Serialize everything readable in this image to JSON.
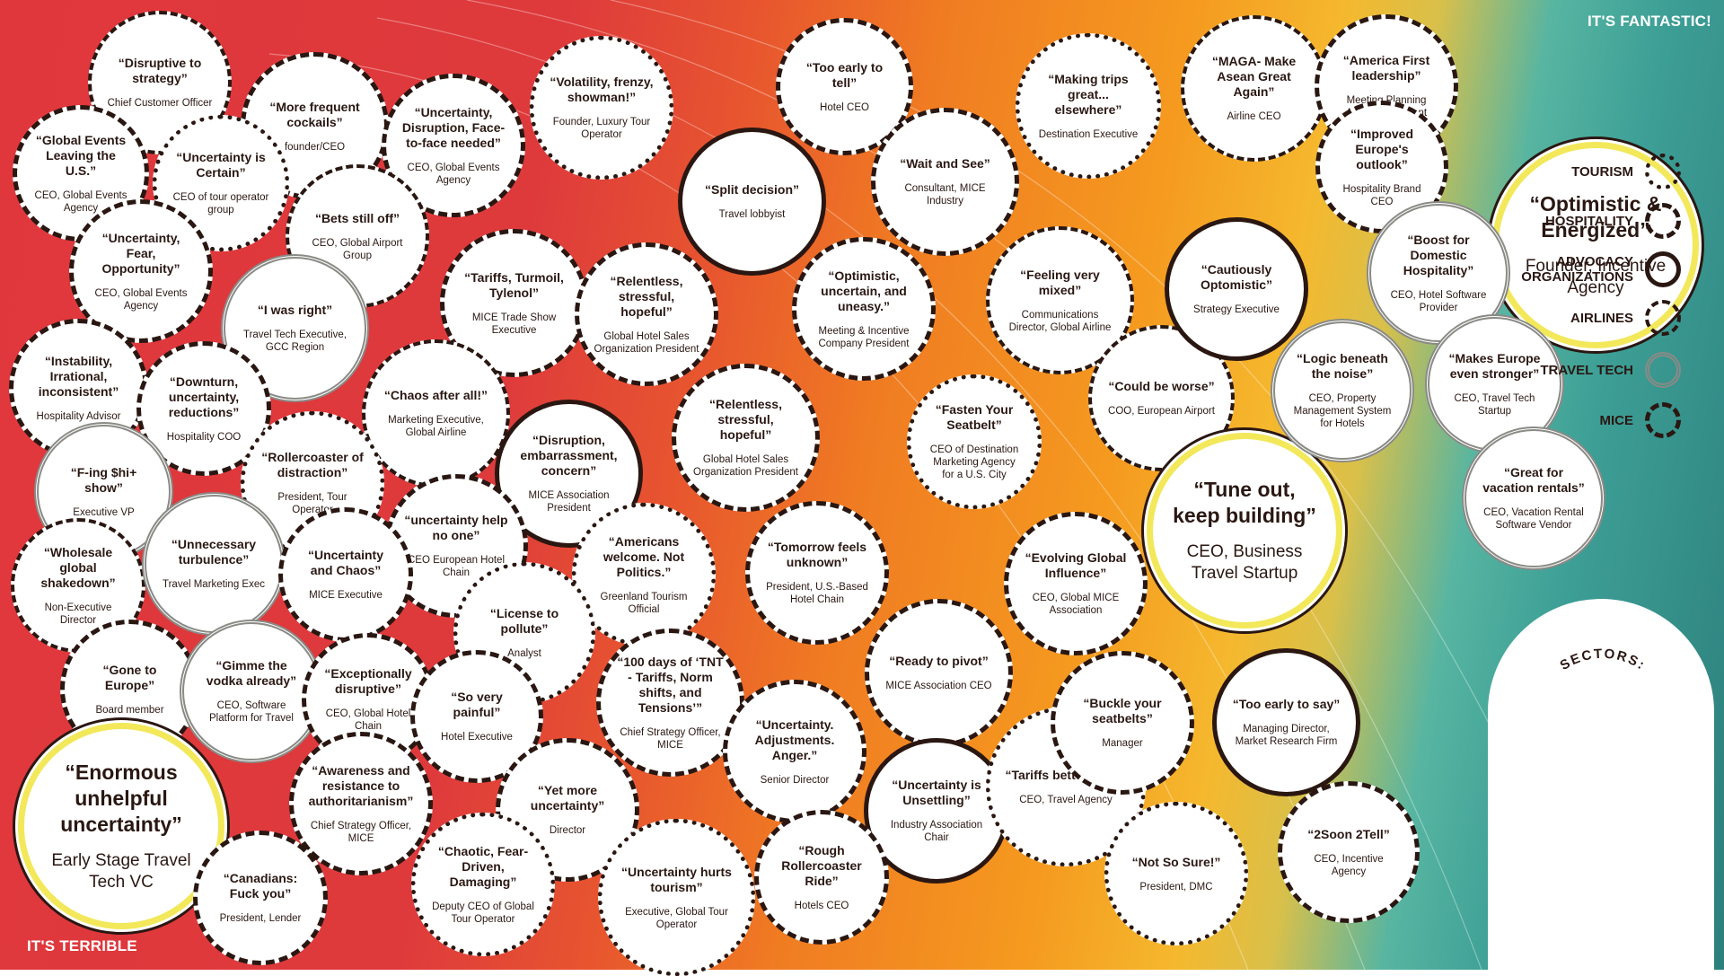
{
  "header": {
    "top_right": "IT'S FANTASTIC!",
    "bottom_left": "IT'S TERRIBLE"
  },
  "legend": {
    "title": "SECTORS:",
    "items": [
      {
        "label": "TOURISM",
        "sector": "tourism"
      },
      {
        "label": "HOSPITALITY",
        "sector": "hospitality"
      },
      {
        "label": "ADVOCACY ORGANIZATIONS",
        "sector": "advocacy"
      },
      {
        "label": "AIRLINES",
        "sector": "airlines"
      },
      {
        "label": "TRAVEL TECH",
        "sector": "traveltech"
      },
      {
        "label": "MICE",
        "sector": "mice"
      }
    ]
  },
  "colors": {
    "red": "#e0373d",
    "orange": "#f07c22",
    "yellow": "#f5b82e",
    "teal": "#3d9f96",
    "highlight_ring": "#f2e85a",
    "ink": "#2a1712"
  },
  "bubbles": [
    {
      "quote": "“Disruptive to strategy”",
      "role": "Chief Customer Officer",
      "sector": "airlines"
    },
    {
      "quote": "“More frequent cockails”",
      "role": "founder/CEO",
      "sector": "hospitality"
    },
    {
      "quote": "“Global Events Leaving the U.S.”",
      "role": "CEO, Global Events Agency",
      "sector": "mice"
    },
    {
      "quote": "“Uncertainty is Certain”",
      "role": "CEO of tour operator group",
      "sector": "tourism"
    },
    {
      "quote": "“Uncertainty, Disruption, Face-to-face needed”",
      "role": "CEO, Global Events Agency",
      "sector": "mice"
    },
    {
      "quote": "“Volatility, frenzy, showman!”",
      "role": "Founder, Luxury Tour Operator",
      "sector": "tourism"
    },
    {
      "quote": "“Bets still off”",
      "role": "CEO, Global Airport Group",
      "sector": "airlines"
    },
    {
      "quote": "“Uncertainty, Fear, Opportunity”",
      "role": "CEO, Global Events Agency",
      "sector": "mice"
    },
    {
      "quote": "“I was right”",
      "role": "Travel Tech Executive, GCC Region",
      "sector": "traveltech"
    },
    {
      "quote": "“Tariffs, Turmoil, Tylenol”",
      "role": "MICE Trade Show Executive",
      "sector": "mice"
    },
    {
      "quote": "“Relentless, stressful, hopeful”",
      "role": "Global Hotel Sales Organization President",
      "sector": "hospitality"
    },
    {
      "quote": "“Instability, Irrational, inconsistent”",
      "role": "Hospitality Advisor",
      "sector": "hospitality"
    },
    {
      "quote": "“Downturn, uncertainty, reductions”",
      "role": "Hospitality COO",
      "sector": "hospitality"
    },
    {
      "quote": "“Chaos after all!”",
      "role": "Marketing Executive, Global Airline",
      "sector": "airlines"
    },
    {
      "quote": "“F-ing $hi+ show”",
      "role": "Executive VP",
      "sector": "traveltech"
    },
    {
      "quote": "“Rollercoaster of distraction”",
      "role": "President, Tour Operator",
      "sector": "tourism"
    },
    {
      "quote": "“Disruption, embarrassment, concern”",
      "role": "MICE Association President",
      "sector": "advocacy"
    },
    {
      "quote": "“Relentless, stressful, hopeful”",
      "role": "Global Hotel Sales Organization President",
      "sector": "hospitality"
    },
    {
      "quote": "“uncertainty help no one”",
      "role": "CEO European Hotel Chain",
      "sector": "hospitality"
    },
    {
      "quote": "“Wholesale global shakedown”",
      "role": "Non-Executive Director",
      "sector": "airlines"
    },
    {
      "quote": "“Unnecessary turbulence”",
      "role": "Travel Marketing Exec",
      "sector": "traveltech"
    },
    {
      "quote": "“Uncertainty and Chaos”",
      "role": "MICE Executive",
      "sector": "mice"
    },
    {
      "quote": "“Americans welcome. Not Politics.”",
      "role": "Greenland Tourism Official",
      "sector": "tourism"
    },
    {
      "quote": "“License to pollute”",
      "role": "Analyst",
      "sector": "tourism"
    },
    {
      "quote": "“Gone to Europe”",
      "role": "Board member",
      "sector": "hospitality"
    },
    {
      "quote": "“Gimme the vodka already”",
      "role": "CEO, Software Platform for Travel",
      "sector": "traveltech"
    },
    {
      "quote": "“Exceptionally disruptive”",
      "role": "CEO, Global Hotel Chain",
      "sector": "hospitality"
    },
    {
      "quote": "“So very painful”",
      "role": "Hotel Executive",
      "sector": "hospitality"
    },
    {
      "quote": "“100 days of ‘TNT - Tariffs, Norm shifts, and Tensions’”",
      "role": "Chief Strategy Officer, MICE",
      "sector": "mice"
    },
    {
      "quote": "“Enormous unhelpful uncertainty”",
      "role": "Early Stage Travel Tech VC",
      "sector": "featured"
    },
    {
      "quote": "“Awareness and resistance to authoritarianism”",
      "role": "Chief Strategy Officer, MICE",
      "sector": "mice"
    },
    {
      "quote": "“Yet more uncertainty”",
      "role": "Director",
      "sector": "hospitality"
    },
    {
      "quote": "“Canadians: Fuck you”",
      "role": "President, Lender",
      "sector": "hospitality"
    },
    {
      "quote": "“Chaotic, Fear-Driven, Damaging”",
      "role": "Deputy CEO of Global Tour Operator",
      "sector": "tourism"
    },
    {
      "quote": "“Uncertainty hurts tourism”",
      "role": "Executive, Global Tour Operator",
      "sector": "tourism"
    },
    {
      "quote": "“Too early to tell”",
      "role": "Hotel CEO",
      "sector": "hospitality"
    },
    {
      "quote": "“Split decision”",
      "role": "Travel lobbyist",
      "sector": "advocacy"
    },
    {
      "quote": "“Wait and See”",
      "role": "Consultant, MICE Industry",
      "sector": "mice"
    },
    {
      "quote": "“Optimistic, uncertain, and uneasy.”",
      "role": "Meeting & Incentive Company President",
      "sector": "mice"
    },
    {
      "quote": "“Fasten Your Seatbelt”",
      "role": "CEO of Destination Marketing Agency for a U.S. City",
      "sector": "tourism"
    },
    {
      "quote": "“Tomorrow feels unknown”",
      "role": "President, U.S.-Based Hotel Chain",
      "sector": "hospitality"
    },
    {
      "quote": "“Ready to pivot”",
      "role": "MICE Association CEO",
      "sector": "mice"
    },
    {
      "quote": "“Uncertainty. Adjustments. Anger.”",
      "role": "Senior Director",
      "sector": "hospitality"
    },
    {
      "quote": "“Uncertainty is Unsettling”",
      "role": "Industry Association Chair",
      "sector": "advocacy"
    },
    {
      "quote": "“Rough Rollercoaster Ride”",
      "role": "Hotels CEO",
      "sector": "hospitality"
    },
    {
      "quote": "“Tariffs better work”",
      "role": "CEO, Travel Agency",
      "sector": "tourism"
    },
    {
      "quote": "“Making trips great... elsewhere”",
      "role": "Destination Executive",
      "sector": "tourism"
    },
    {
      "quote": "“Feeling very mixed”",
      "role": "Communications Director, Global Airline",
      "sector": "airlines"
    },
    {
      "quote": "“Could be worse”",
      "role": "COO, European Airport",
      "sector": "airlines"
    },
    {
      "quote": "“Cautiously Optomistic”",
      "role": "Strategy Executive",
      "sector": "advocacy"
    },
    {
      "quote": "“Evolving Global Influence”",
      "role": "CEO, Global MICE Association",
      "sector": "mice"
    },
    {
      "quote": "“Tune out, keep building”",
      "role": "CEO, Business Travel Startup",
      "sector": "featured"
    },
    {
      "quote": "“Buckle your seatbelts”",
      "role": "Manager",
      "sector": "hospitality"
    },
    {
      "quote": "“Too early to say”",
      "role": "Managing Director, Market Research Firm",
      "sector": "advocacy"
    },
    {
      "quote": "“Not So Sure!”",
      "role": "President, DMC",
      "sector": "tourism"
    },
    {
      "quote": "“2Soon 2Tell”",
      "role": "CEO, Incentive Agency",
      "sector": "mice"
    },
    {
      "quote": "“MAGA- Make Asean Great Again”",
      "role": "Airline CEO",
      "sector": "airlines"
    },
    {
      "quote": "“America First leadership”",
      "role": "Meeting Planning Agency President",
      "sector": "mice"
    },
    {
      "quote": "“Improved Europe's outlook”",
      "role": "Hospitality Brand CEO",
      "sector": "hospitality"
    },
    {
      "quote": "“Optimistic & Energized”",
      "role": "Founder, Incentive Agency",
      "sector": "featured"
    },
    {
      "quote": "“Boost for Domestic Hospitality”",
      "role": "CEO, Hotel Software Provider",
      "sector": "traveltech"
    },
    {
      "quote": "“Logic beneath the noise”",
      "role": "CEO, Property Management System for Hotels",
      "sector": "traveltech"
    },
    {
      "quote": "“Makes Europe even stronger”",
      "role": "CEO, Travel Tech Startup",
      "sector": "traveltech"
    },
    {
      "quote": "“Great for vacation rentals”",
      "role": "CEO, Vacation Rental Software Vendor",
      "sector": "traveltech"
    }
  ]
}
